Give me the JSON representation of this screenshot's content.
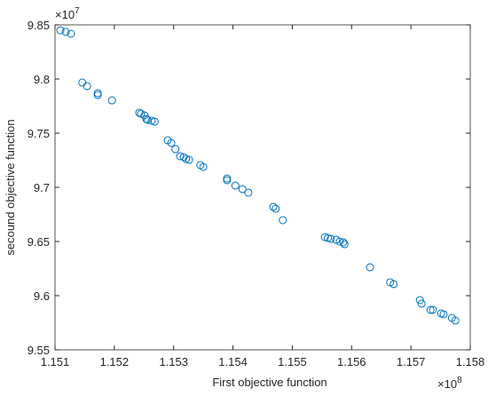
{
  "chart_data": {
    "type": "scatter",
    "xlabel": "First objective function",
    "ylabel": "secound objective function",
    "x_multiplier": {
      "base": "×10",
      "power": "8"
    },
    "y_multiplier": {
      "base": "×10",
      "power": "7"
    },
    "color": "#0072bd",
    "xlim": [
      1.151,
      1.158
    ],
    "ylim": [
      9.55,
      9.85
    ],
    "xticks": [
      1.151,
      1.152,
      1.153,
      1.154,
      1.155,
      1.156,
      1.157,
      1.158
    ],
    "yticks": [
      9.55,
      9.6,
      9.65,
      9.7,
      9.75,
      9.8,
      9.85
    ],
    "x": [
      1.15109,
      1.15118,
      1.15127,
      1.15146,
      1.15154,
      1.15172,
      1.15172,
      1.15196,
      1.15242,
      1.15245,
      1.15251,
      1.15254,
      1.15256,
      1.15263,
      1.15268,
      1.1529,
      1.15296,
      1.15303,
      1.15311,
      1.15317,
      1.15321,
      1.15326,
      1.15345,
      1.1535,
      1.1539,
      1.1539,
      1.15404,
      1.15416,
      1.15426,
      1.15468,
      1.15472,
      1.15484,
      1.15555,
      1.1556,
      1.15565,
      1.15574,
      1.1558,
      1.15586,
      1.15588,
      1.15631,
      1.15665,
      1.15671,
      1.15715,
      1.15718,
      1.15733,
      1.15737,
      1.15751,
      1.15755,
      1.15769,
      1.15775
    ],
    "values": [
      9.845,
      9.8435,
      9.8418,
      9.7967,
      9.7934,
      9.7869,
      9.7852,
      9.7803,
      9.7689,
      9.768,
      9.7664,
      9.7631,
      9.7623,
      9.7615,
      9.7607,
      9.7434,
      9.741,
      9.7352,
      9.7287,
      9.7279,
      9.7262,
      9.7254,
      9.7205,
      9.7189,
      9.7082,
      9.7066,
      9.7016,
      9.6984,
      9.6951,
      9.682,
      9.6803,
      9.6697,
      9.6541,
      9.6533,
      9.6525,
      9.6516,
      9.65,
      9.6492,
      9.6475,
      9.6262,
      9.6123,
      9.6107,
      9.5959,
      9.5926,
      9.5869,
      9.5869,
      9.5836,
      9.5828,
      9.5795,
      9.577
    ]
  }
}
